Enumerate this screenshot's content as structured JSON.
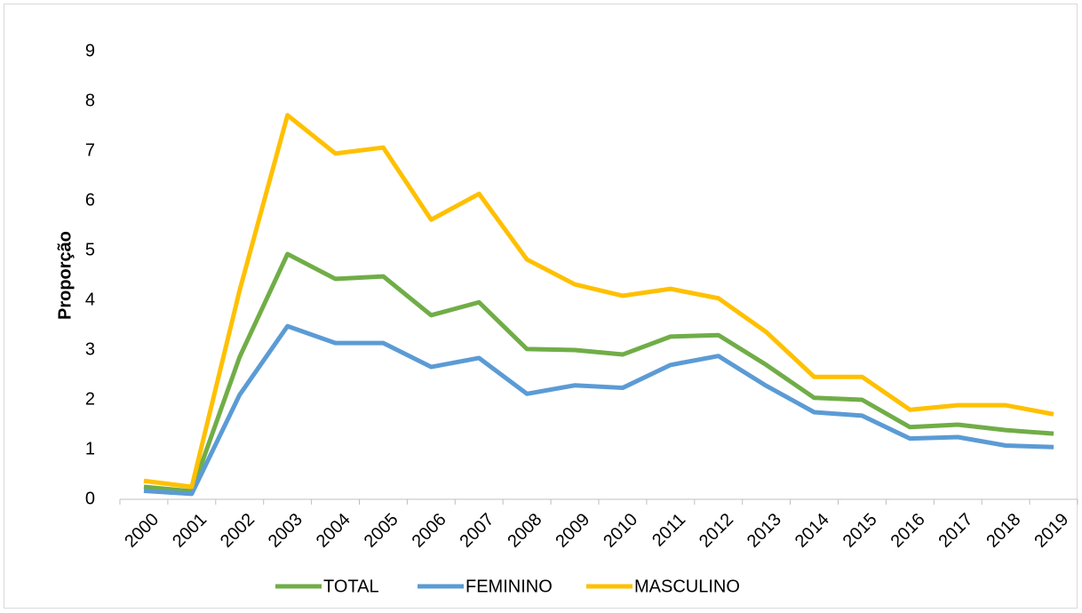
{
  "chart_data": {
    "type": "line",
    "y_label": "Proporção",
    "categories": [
      "2000",
      "2001",
      "2002",
      "2003",
      "2004",
      "2005",
      "2006",
      "2007",
      "2008",
      "2009",
      "2010",
      "2011",
      "2012",
      "2013",
      "2014",
      "2015",
      "2016",
      "2017",
      "2018",
      "2019"
    ],
    "series": [
      {
        "name": "TOTAL",
        "color": "#70ad47",
        "values": [
          0.25,
          0.16,
          2.86,
          4.93,
          4.43,
          4.48,
          3.7,
          3.96,
          3.02,
          3.0,
          2.91,
          3.27,
          3.3,
          2.7,
          2.04,
          2.0,
          1.45,
          1.5,
          1.39,
          1.32
        ]
      },
      {
        "name": "FEMININO",
        "color": "#5b9bd5",
        "values": [
          0.17,
          0.11,
          2.1,
          3.48,
          3.14,
          3.14,
          2.66,
          2.84,
          2.12,
          2.29,
          2.24,
          2.7,
          2.88,
          2.28,
          1.75,
          1.68,
          1.22,
          1.25,
          1.08,
          1.05
        ]
      },
      {
        "name": "MASCULINO",
        "color": "#ffc000",
        "values": [
          0.37,
          0.25,
          4.2,
          7.72,
          6.95,
          7.07,
          5.62,
          6.14,
          4.82,
          4.32,
          4.09,
          4.23,
          4.04,
          3.36,
          2.46,
          2.46,
          1.8,
          1.89,
          1.89,
          1.71
        ]
      }
    ],
    "ylim": [
      0,
      9
    ],
    "yticks": [
      0,
      1,
      2,
      3,
      4,
      5,
      6,
      7,
      8,
      9
    ],
    "grid": false
  }
}
